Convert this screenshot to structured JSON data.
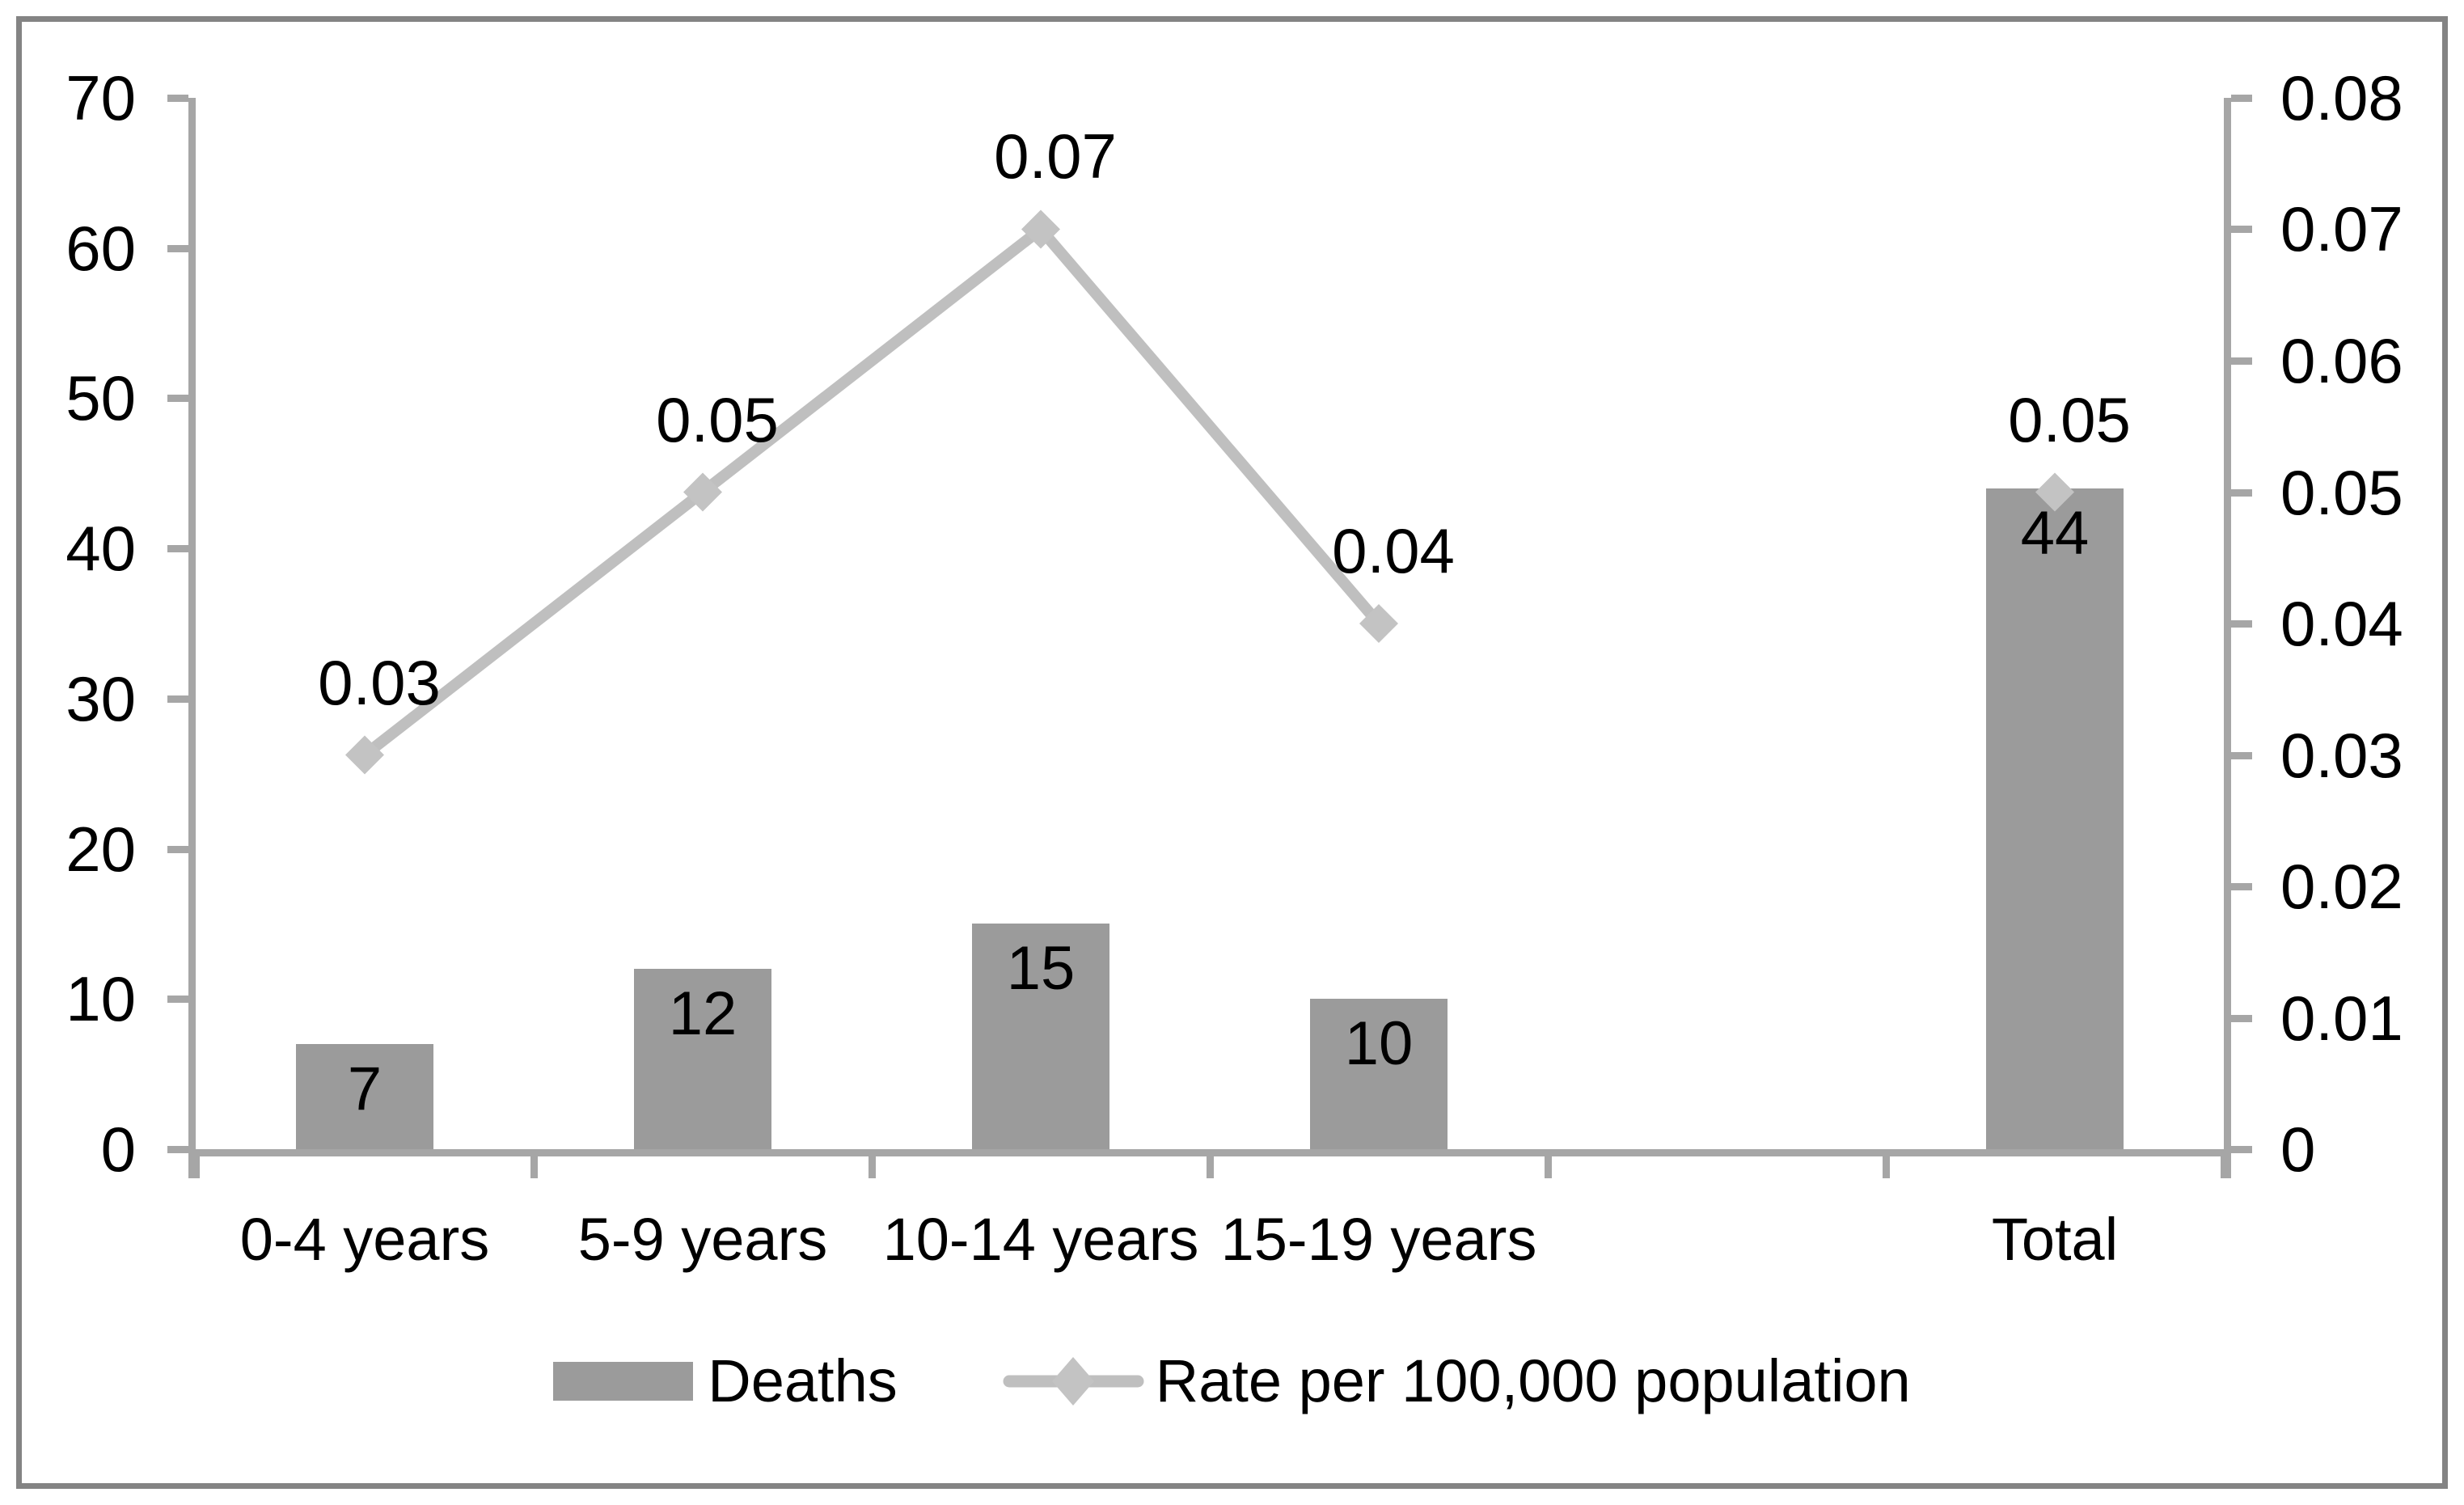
{
  "chart_data": {
    "type": "combo-bar-line",
    "title": "",
    "xlabel": "",
    "ylabel_left": "",
    "ylabel_right": "",
    "grid": "off",
    "legend_position": "bottom",
    "categories": [
      "0-4 years",
      "5-9 years",
      "10-14 years",
      "15-19 years",
      "",
      "Total"
    ],
    "series": [
      {
        "name": "Deaths",
        "type": "bar",
        "axis": "left",
        "values": [
          7,
          12,
          15,
          10,
          null,
          44
        ],
        "labels": [
          "7",
          "12",
          "15",
          "10",
          "",
          "44"
        ],
        "color": "#9b9b9b"
      },
      {
        "name": "Rate per 100,000 population",
        "type": "line",
        "axis": "right",
        "marker": "diamond",
        "values": [
          0.03,
          0.05,
          0.07,
          0.04,
          null,
          0.05
        ],
        "labels": [
          "0.03",
          "0.05",
          "0.07",
          "0.04",
          "",
          "0.05"
        ],
        "color": "#bfbfbf",
        "marker_color": "#c3c3c3"
      }
    ],
    "left_axis": {
      "min": 0,
      "max": 70,
      "step": 10,
      "ticks": [
        "0",
        "10",
        "20",
        "30",
        "40",
        "50",
        "60",
        "70"
      ]
    },
    "right_axis": {
      "min": 0,
      "max": 0.08,
      "step": 0.01,
      "ticks": [
        "0",
        "0.01",
        "0.02",
        "0.03",
        "0.04",
        "0.05",
        "0.06",
        "0.07",
        "0.08"
      ]
    },
    "legend": [
      {
        "label": "Deaths",
        "swatch": "bar-swatch"
      },
      {
        "label": "Rate per 100,000 population",
        "swatch": "line-diamond-swatch"
      }
    ]
  },
  "style": {
    "background": "#ffffff",
    "frame_color": "#848484",
    "axis_color": "#a6a6a6",
    "bar_color": "#9b9b9b",
    "line_color": "#bfbfbf",
    "marker_color": "#c3c3c3",
    "text_color": "#000000"
  }
}
